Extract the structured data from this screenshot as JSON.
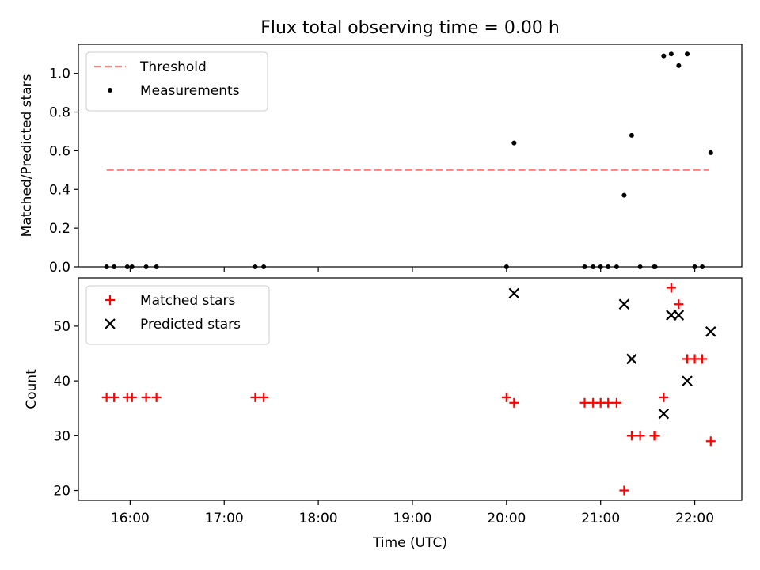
{
  "chart_data": [
    {
      "type": "scatter",
      "title": "Flux total observing time = 0.00 h",
      "xlabel": "",
      "ylabel": "Matched/Predicted stars",
      "xlim": [
        15.45,
        22.5
      ],
      "ylim": [
        0,
        1.15
      ],
      "yticks": [
        0.0,
        0.2,
        0.4,
        0.6,
        0.8,
        1.0
      ],
      "yticklabels": [
        "0.0",
        "0.2",
        "0.4",
        "0.6",
        "0.8",
        "1.0"
      ],
      "legend_position": "top-left",
      "threshold": {
        "name": "Threshold",
        "value": 0.5,
        "x_range": [
          15.75,
          22.15
        ],
        "color": "#ff7f7f",
        "style": "dashed"
      },
      "series": [
        {
          "name": "Measurements",
          "marker": "dot",
          "color": "#000000",
          "x": [
            15.75,
            15.83,
            15.97,
            16.02,
            16.17,
            16.28,
            17.33,
            17.42,
            20.0,
            20.08,
            20.83,
            20.92,
            21.0,
            21.08,
            21.17,
            21.25,
            21.33,
            21.42,
            21.57,
            21.58,
            21.67,
            21.75,
            21.83,
            21.92,
            22.0,
            22.08,
            22.17
          ],
          "y": [
            0,
            0,
            0,
            0,
            0,
            0,
            0,
            0,
            0,
            0.64,
            0,
            0,
            0,
            0,
            0,
            0.37,
            0.68,
            0,
            0,
            0,
            1.09,
            1.1,
            1.04,
            1.1,
            0,
            0,
            0.59
          ]
        }
      ]
    },
    {
      "type": "scatter",
      "title": "",
      "xlabel": "Time (UTC)",
      "ylabel": "Count",
      "xlim": [
        15.45,
        22.5
      ],
      "ylim": [
        18.2,
        58.8
      ],
      "xticks": [
        16,
        17,
        18,
        19,
        20,
        21,
        22
      ],
      "xticklabels": [
        "16:00",
        "17:00",
        "18:00",
        "19:00",
        "20:00",
        "21:00",
        "22:00"
      ],
      "yticks": [
        20,
        30,
        40,
        50
      ],
      "yticklabels": [
        "20",
        "30",
        "40",
        "50"
      ],
      "legend_position": "top-left",
      "series": [
        {
          "name": "Matched stars",
          "marker": "plus",
          "color": "#ff0000",
          "x": [
            15.75,
            15.83,
            15.97,
            16.02,
            16.17,
            16.28,
            17.33,
            17.42,
            20.0,
            20.08,
            20.83,
            20.92,
            21.0,
            21.08,
            21.17,
            21.25,
            21.33,
            21.42,
            21.57,
            21.58,
            21.67,
            21.75,
            21.83,
            21.92,
            22.0,
            22.08,
            22.17
          ],
          "y": [
            37,
            37,
            37,
            37,
            37,
            37,
            37,
            37,
            37,
            36,
            36,
            36,
            36,
            36,
            36,
            20,
            30,
            30,
            30,
            30,
            37,
            57,
            54,
            44,
            44,
            44,
            29
          ]
        },
        {
          "name": "Predicted stars",
          "marker": "x",
          "color": "#000000",
          "x": [
            20.08,
            21.25,
            21.33,
            21.67,
            21.75,
            21.83,
            21.92,
            22.17
          ],
          "y": [
            56,
            54,
            44,
            34,
            52,
            52,
            40,
            49
          ]
        }
      ]
    }
  ]
}
